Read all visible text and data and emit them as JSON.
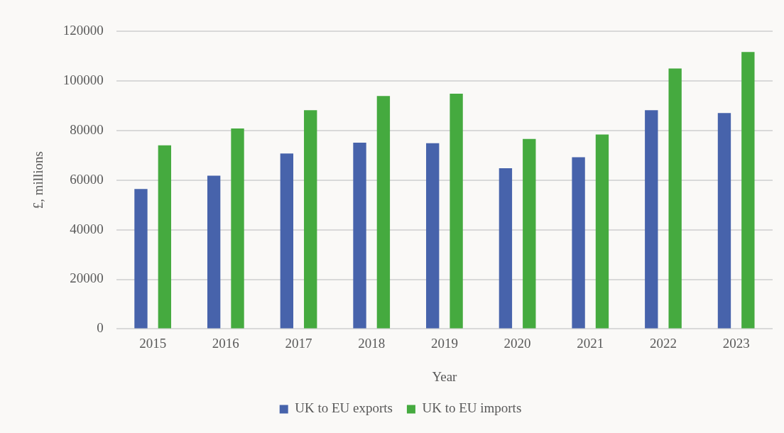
{
  "chart_data": {
    "type": "bar",
    "xlabel": "Year",
    "ylabel": "£, millions",
    "categories": [
      "2015",
      "2016",
      "2017",
      "2018",
      "2019",
      "2020",
      "2021",
      "2022",
      "2023"
    ],
    "series": [
      {
        "name": "UK to EU exports",
        "color": "#4763ab",
        "values": [
          56400,
          61800,
          70700,
          75100,
          74900,
          64800,
          69200,
          88200,
          87000
        ]
      },
      {
        "name": "UK to EU imports",
        "color": "#45aa3f",
        "values": [
          74000,
          80800,
          88200,
          93900,
          94800,
          76600,
          78400,
          105000,
          111600
        ]
      }
    ],
    "ylim": [
      0,
      120000
    ],
    "yticks": [
      0,
      20000,
      40000,
      60000,
      80000,
      100000,
      120000
    ],
    "grid": "y",
    "legend": "bottom"
  }
}
